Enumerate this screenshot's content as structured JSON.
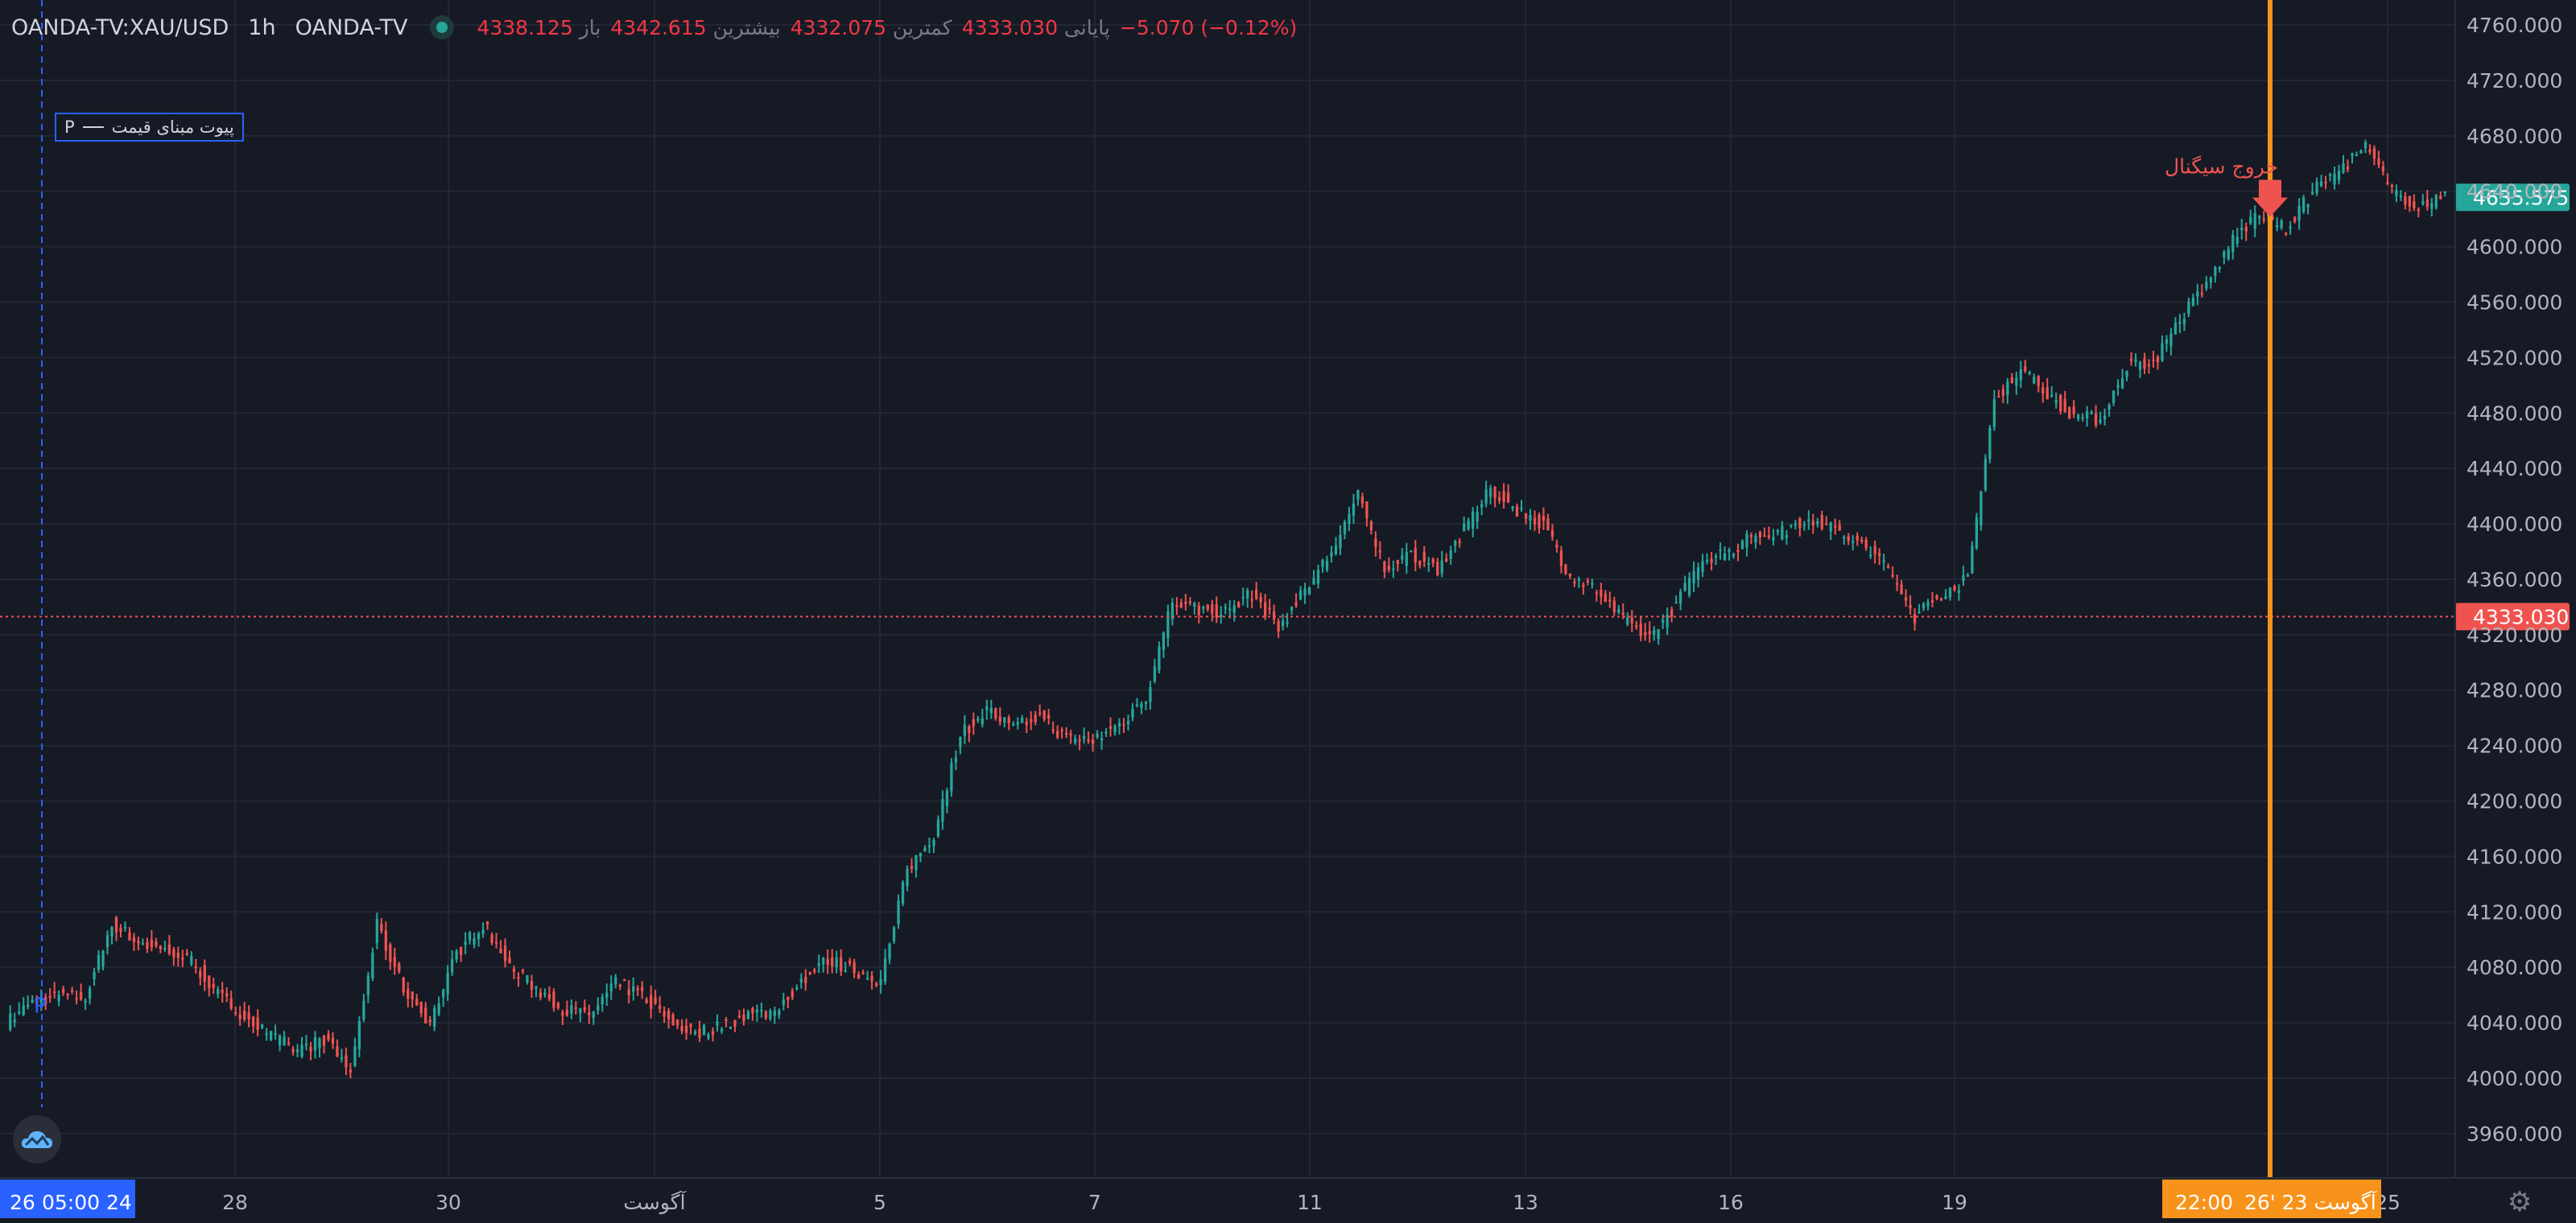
{
  "header": {
    "symbol": "OANDA-TV:XAU/USD",
    "timeframe": "1h",
    "source": "OANDA-TV",
    "open_label": "باز",
    "open_value": "4338.125",
    "high_label": "بیشترین",
    "high_value": "4342.615",
    "low_label": "کمترین",
    "low_value": "4332.075",
    "close_label": "پایانی",
    "close_value": "4333.030",
    "change": "−5.070 (−0.12%)"
  },
  "legend": {
    "marker": "P",
    "label": "پیوت مبنای قیمت"
  },
  "colors": {
    "background": "#161a25",
    "up": "#26a69a",
    "down": "#ef5350",
    "signal_line": "#f7931a",
    "pivot": "#2962ff",
    "grid": "#232733"
  },
  "icons": {
    "logo": "cloud-icon",
    "settings": "gear-icon"
  },
  "chart_data": {
    "type": "candlestick",
    "title": "OANDA-TV:XAU/USD 1h",
    "x_axis_labels": [
      "26",
      "05:00 24",
      "28",
      "30",
      "آگوست",
      "5",
      "7",
      "11",
      "13",
      "16",
      "19",
      "22:00",
      "26' آگوست 23",
      "25"
    ],
    "y_ticks": [
      3960,
      4000,
      4040,
      4080,
      4120,
      4160,
      4200,
      4240,
      4280,
      4320,
      4360,
      4400,
      4440,
      4480,
      4520,
      4560,
      4600,
      4640,
      4680,
      4720,
      4760
    ],
    "y_tick_labels": [
      "3960.000",
      "4000.000",
      "4040.000",
      "4080.000",
      "4120.000",
      "4160.000",
      "4200.000",
      "4240.000",
      "4280.000",
      "4320.000",
      "4360.000",
      "4400.000",
      "4440.000",
      "4480.000",
      "4520.000",
      "4560.000",
      "4600.000",
      "4640.000",
      "4680.000",
      "4720.000",
      "4760.000"
    ],
    "ylim": [
      3928,
      4778
    ],
    "close_series": [
      4040,
      4055,
      4060,
      4058,
      4112,
      4098,
      4092,
      4085,
      4060,
      4045,
      4030,
      4020,
      4028,
      4005,
      4110,
      4065,
      4040,
      4090,
      4112,
      4080,
      4065,
      4050,
      4045,
      4068,
      4060,
      4042,
      4032,
      4038,
      4046,
      4048,
      4070,
      4085,
      4078,
      4070,
      4150,
      4176,
      4248,
      4266,
      4252,
      4262,
      4245,
      4244,
      4255,
      4275,
      4345,
      4338,
      4336,
      4350,
      4325,
      4352,
      4380,
      4420,
      4368,
      4378,
      4368,
      4395,
      4425,
      4410,
      4400,
      4362,
      4352,
      4330,
      4318,
      4342,
      4375,
      4380,
      4392,
      4394,
      4405,
      4395,
      4385,
      4368,
      4333,
      4350,
      4360,
      4490,
      4512,
      4494,
      4478,
      4475,
      4515,
      4516,
      4548,
      4572,
      4605,
      4625,
      4612,
      4640,
      4655,
      4672,
      4640,
      4630,
      4635
    ],
    "current_price": "4333.030",
    "current_price_raw": 4333.03,
    "last_price": "4635.575",
    "last_price_raw": 4635.575,
    "signal_label": "خروج سیگنال",
    "signal_price": 4625,
    "pivot_marker": "P",
    "pivot_price": 4052
  }
}
